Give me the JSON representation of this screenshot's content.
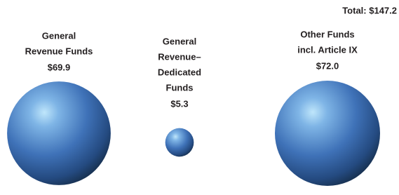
{
  "chart_data": {
    "type": "bubble",
    "annotation": "Total: $147.2",
    "categories": [
      [
        "General",
        "Revenue Funds"
      ],
      [
        "General",
        "Revenue–",
        "Dedicated",
        "Funds"
      ],
      [
        "Other Funds",
        "incl. Article IX"
      ]
    ],
    "values": [
      69.9,
      5.3,
      72.0
    ],
    "value_labels": [
      "$69.9",
      "$5.3",
      "$72.0"
    ],
    "color": "#3f72b8"
  }
}
